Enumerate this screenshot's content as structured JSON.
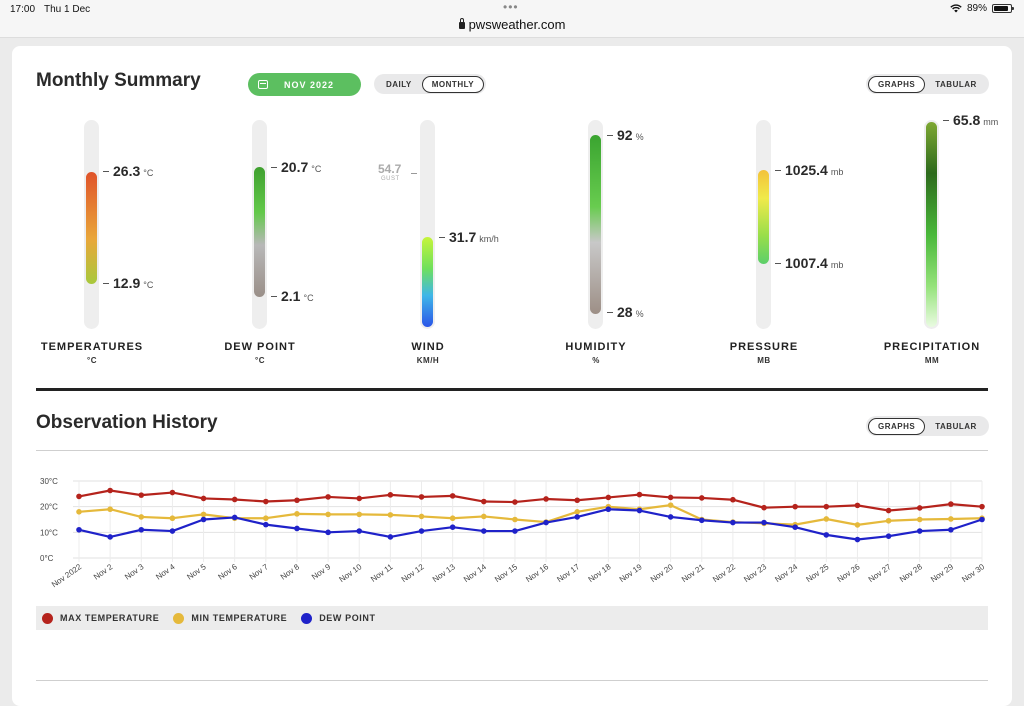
{
  "status_bar": {
    "time": "17:00",
    "date": "Thu 1 Dec",
    "url": "pwsweather.com",
    "battery": "89%"
  },
  "monthly": {
    "title": "Monthly Summary",
    "date_button": "NOV 2022",
    "range_toggle": [
      "DAILY",
      "MONTHLY"
    ],
    "view_toggle": [
      "GRAPHS",
      "TABULAR"
    ],
    "gauges": {
      "temperatures": {
        "label": "TEMPERATURES",
        "unit": "°C",
        "max": "26.3",
        "max_unit": "°C",
        "min": "12.9",
        "min_unit": "°C"
      },
      "dew_point": {
        "label": "DEW POINT",
        "unit": "°C",
        "max": "20.7",
        "max_unit": "°C",
        "min": "2.1",
        "min_unit": "°C"
      },
      "wind": {
        "label": "WIND",
        "unit": "KM/H",
        "gust": "54.7",
        "gust_label": "GUST",
        "value": "31.7",
        "value_unit": "km/h"
      },
      "humidity": {
        "label": "HUMIDITY",
        "unit": "%",
        "max": "92",
        "max_unit": "%",
        "min": "28",
        "min_unit": "%"
      },
      "pressure": {
        "label": "PRESSURE",
        "unit": "MB",
        "max": "1025.4",
        "max_unit": "mb",
        "min": "1007.4",
        "min_unit": "mb"
      },
      "precipitation": {
        "label": "PRECIPITATION",
        "unit": "MM",
        "value": "65.8",
        "value_unit": "mm"
      }
    }
  },
  "history": {
    "title": "Observation History",
    "view_toggle": [
      "GRAPHS",
      "TABULAR"
    ]
  },
  "chart_data": {
    "type": "line",
    "categories": [
      "Nov 2022",
      "Nov 2",
      "Nov 3",
      "Nov 4",
      "Nov 5",
      "Nov 6",
      "Nov 7",
      "Nov 8",
      "Nov 9",
      "Nov 10",
      "Nov 11",
      "Nov 12",
      "Nov 13",
      "Nov 14",
      "Nov 15",
      "Nov 16",
      "Nov 17",
      "Nov 18",
      "Nov 19",
      "Nov 20",
      "Nov 21",
      "Nov 22",
      "Nov 23",
      "Nov 24",
      "Nov 25",
      "Nov 26",
      "Nov 27",
      "Nov 28",
      "Nov 29",
      "Nov 30"
    ],
    "y_ticks": [
      "0°C",
      "10°C",
      "20°C",
      "30°C"
    ],
    "ylim": [
      0,
      30
    ],
    "grid": true,
    "legend": "bottom",
    "series": [
      {
        "name": "MAX TEMPERATURE",
        "color": "#b5231c",
        "values": [
          24.0,
          26.3,
          24.5,
          25.5,
          23.2,
          22.8,
          22.0,
          22.5,
          23.8,
          23.2,
          24.6,
          23.8,
          24.2,
          22.0,
          21.8,
          23.0,
          22.5,
          23.6,
          24.7,
          23.6,
          23.4,
          22.7,
          19.6,
          20.0,
          20.0,
          20.5,
          18.5,
          19.5,
          21.0,
          20.0
        ]
      },
      {
        "name": "MIN TEMPERATURE",
        "color": "#e5b93b",
        "values": [
          18.0,
          19.0,
          16.0,
          15.5,
          17.0,
          15.5,
          15.5,
          17.2,
          17.0,
          17.0,
          16.8,
          16.2,
          15.5,
          16.2,
          15.0,
          14.0,
          18.0,
          20.0,
          19.0,
          20.6,
          15.0,
          14.0,
          13.5,
          13.0,
          15.2,
          12.9,
          14.5,
          15.0,
          15.2,
          15.5
        ]
      },
      {
        "name": "DEW POINT",
        "color": "#1f22c9",
        "values": [
          11.0,
          8.2,
          11.0,
          10.5,
          15.0,
          15.8,
          13.0,
          11.5,
          10.0,
          10.5,
          8.2,
          10.5,
          12.0,
          10.5,
          10.5,
          13.8,
          16.0,
          19.0,
          18.5,
          16.0,
          14.7,
          13.8,
          13.8,
          12.0,
          9.0,
          7.2,
          8.5,
          10.5,
          11.0,
          15.0
        ]
      }
    ]
  }
}
